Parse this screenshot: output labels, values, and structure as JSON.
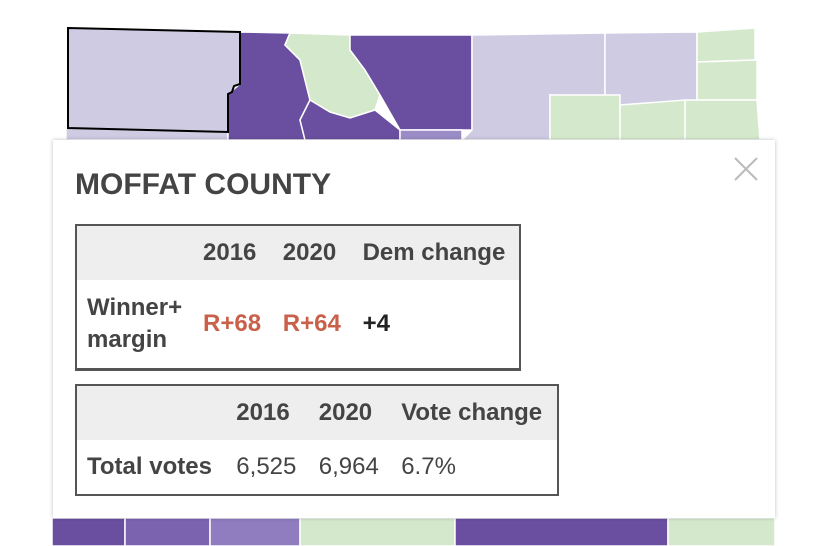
{
  "popup": {
    "title": "MOFFAT COUNTY",
    "tables": [
      {
        "columns": [
          "2016",
          "2020",
          "Dem change"
        ],
        "rows": [
          {
            "label": "Winner+ margin",
            "cells": [
              "R+68",
              "R+64",
              "+4"
            ]
          }
        ]
      },
      {
        "columns": [
          "2016",
          "2020",
          "Vote change"
        ],
        "rows": [
          {
            "label": "Total votes",
            "cells": [
              "6,525",
              "6,964",
              "6.7%"
            ]
          }
        ]
      }
    ]
  }
}
